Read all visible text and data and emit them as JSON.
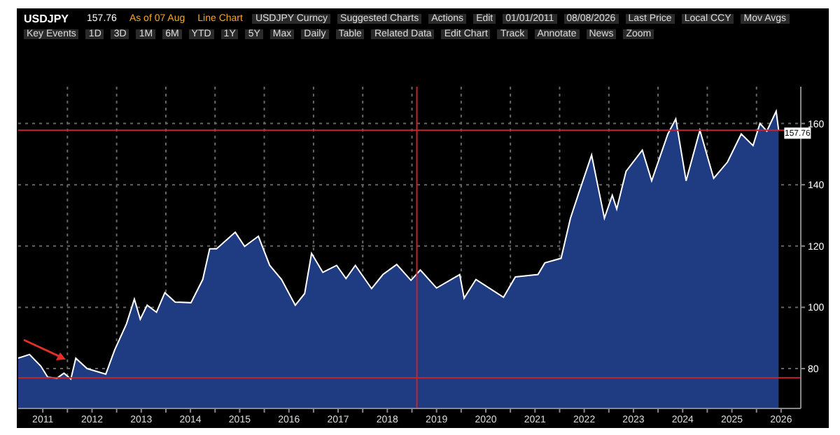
{
  "chart_data": {
    "type": "area",
    "title": "USDJPY",
    "annotations": [
      "157.76",
      "As of 07 Aug",
      "Line Chart",
      "USDJPY Curncy",
      "Suggested Charts",
      "Actions",
      "Edit",
      "01/01/2011",
      "08/08/2026",
      "Last Price",
      "Local CCY",
      "Mov Avgs",
      "Key Events",
      "1D",
      "3D",
      "1M",
      "6M",
      "YTD",
      "1Y",
      "5Y",
      "Max",
      "Daily",
      "Table",
      "Related Data",
      "Edit Chart",
      "Track",
      "Annotate",
      "News",
      "Zoom",
      {
        "text": "157.76",
        "x": 2026.45,
        "y": 157.76
      }
    ],
    "x": [
      2011.0,
      2011.23,
      2011.46,
      2011.6,
      2011.79,
      2011.93,
      2012.07,
      2012.17,
      2012.4,
      2012.78,
      2012.96,
      2013.2,
      2013.36,
      2013.48,
      2013.62,
      2013.81,
      2013.98,
      2014.19,
      2014.51,
      2014.75,
      2014.89,
      2015.03,
      2015.41,
      2015.6,
      2015.88,
      2016.11,
      2016.35,
      2016.63,
      2016.82,
      2016.96,
      2017.19,
      2017.47,
      2017.66,
      2017.85,
      2018.18,
      2018.41,
      2018.69,
      2018.98,
      2019.17,
      2019.5,
      2019.97,
      2020.06,
      2020.3,
      2020.86,
      2021.1,
      2021.56,
      2021.7,
      2022.03,
      2022.22,
      2022.41,
      2022.65,
      2022.91,
      2023.07,
      2023.16,
      2023.35,
      2023.68,
      2023.87,
      2024.2,
      2024.36,
      2024.57,
      2024.85,
      2025.13,
      2025.41,
      2025.69,
      2025.93,
      2026.07,
      2026.21,
      2026.4,
      2026.45
    ],
    "values": [
      83.4,
      84.6,
      80.8,
      77.2,
      76.9,
      78.5,
      76.6,
      83.4,
      80,
      78.2,
      86.1,
      94.6,
      102.7,
      96.1,
      100.7,
      98.4,
      104.8,
      101.7,
      101.5,
      109.1,
      119.1,
      119.1,
      124.5,
      119.9,
      123.2,
      113.7,
      109.1,
      100.7,
      104.5,
      117.6,
      111.4,
      113.7,
      109.4,
      113.7,
      106.1,
      110.7,
      114,
      108.8,
      112.2,
      106.3,
      110.7,
      103,
      109.1,
      103.3,
      109.9,
      110.7,
      114.5,
      116,
      129.1,
      138.3,
      149.7,
      129.1,
      136.6,
      132.1,
      144.4,
      151.3,
      141.3,
      156.6,
      161.5,
      141.3,
      157.8,
      142.1,
      147.4,
      156.6,
      152.8,
      160,
      157.5,
      164,
      157.76
    ],
    "color": "#1f3c82",
    "xlim": [
      2011,
      2026.9
    ],
    "xticks": [
      {
        "value": 2012,
        "label": null
      },
      {
        "value": 2013,
        "label": null
      },
      {
        "value": 2014,
        "label": null
      },
      {
        "value": 2015,
        "label": null
      },
      {
        "value": 2016,
        "label": null
      },
      {
        "value": 2017,
        "label": null
      },
      {
        "value": 2018,
        "label": null
      },
      {
        "value": 2019,
        "label": null
      },
      {
        "value": 2020,
        "label": null
      },
      {
        "value": 2021,
        "label": null
      },
      {
        "value": 2022,
        "label": null
      },
      {
        "value": 2023,
        "label": null
      },
      {
        "value": 2024,
        "label": null
      },
      {
        "value": 2025,
        "label": null
      },
      {
        "value": 2026,
        "label": null
      },
      {
        "value": 2011.5,
        "label": "2011"
      },
      {
        "value": 2012.5,
        "label": "2012"
      },
      {
        "value": 2013.5,
        "label": "2013"
      },
      {
        "value": 2014.5,
        "label": "2014"
      },
      {
        "value": 2015.5,
        "label": "2015"
      },
      {
        "value": 2016.5,
        "label": "2016"
      },
      {
        "value": 2017.5,
        "label": "2017"
      },
      {
        "value": 2018.5,
        "label": "2018"
      },
      {
        "value": 2019.5,
        "label": "2019"
      },
      {
        "value": 2020.5,
        "label": "2020"
      },
      {
        "value": 2021.5,
        "label": "2021"
      },
      {
        "value": 2022.5,
        "label": "2022"
      },
      {
        "value": 2023.5,
        "label": "2023"
      },
      {
        "value": 2024.5,
        "label": "2024"
      },
      {
        "value": 2025.5,
        "label": "2025"
      },
      {
        "value": 2026.5,
        "label": "2026"
      }
    ],
    "ylim": [
      67,
      172
    ],
    "yticks": [
      80,
      100,
      120,
      140,
      160
    ],
    "grid": true,
    "ref_lines": [
      {
        "axis": "y",
        "value": 157.8,
        "color": "#c0282d"
      },
      {
        "axis": "y",
        "value": 77,
        "color": "#c0282d"
      },
      {
        "axis": "x",
        "value": 2019.1,
        "color": "#c0282d"
      }
    ],
    "data_labels": false
  }
}
